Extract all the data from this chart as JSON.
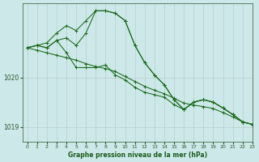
{
  "title": "Graphe pression niveau de la mer (hPa)",
  "background_color": "#cce8e8",
  "line_color": "#1a6b1a",
  "grid_color": "#aaaaaa",
  "xlim": [
    -0.5,
    23
  ],
  "ylim": [
    1018.7,
    1021.5
  ],
  "yticks": [
    1019,
    1020
  ],
  "xticks": [
    0,
    1,
    2,
    3,
    4,
    5,
    6,
    7,
    8,
    9,
    10,
    11,
    12,
    13,
    14,
    15,
    16,
    17,
    18,
    19,
    20,
    21,
    22,
    23
  ],
  "series": [
    [
      1020.6,
      1020.65,
      1020.7,
      1020.9,
      1021.05,
      1020.95,
      1021.15,
      1021.35,
      1021.35,
      1021.3,
      1021.15,
      1020.65,
      1020.3,
      1020.05,
      1019.85,
      1019.55,
      1019.35,
      1019.5,
      1019.55,
      1019.5,
      1019.38,
      1019.25,
      1019.1,
      1019.05
    ],
    [
      1020.6,
      1020.65,
      1020.6,
      1020.75,
      1020.8,
      1020.65,
      1020.9,
      1021.35,
      1021.35,
      1021.3,
      1021.15,
      1020.65,
      1020.3,
      1020.05,
      1019.85,
      1019.55,
      1019.35,
      1019.5,
      1019.55,
      1019.5,
      1019.38,
      1019.25,
      1019.1,
      1019.05
    ],
    [
      1020.6,
      1020.65,
      1020.6,
      1020.75,
      1020.5,
      1020.2,
      1020.2,
      1020.2,
      1020.25,
      1020.05,
      1019.95,
      1019.8,
      1019.7,
      1019.65,
      1019.6,
      1019.45,
      1019.35,
      1019.5,
      1019.55,
      1019.5,
      1019.38,
      1019.25,
      1019.1,
      1019.05
    ],
    [
      1020.6,
      1020.55,
      1020.5,
      1020.45,
      1020.4,
      1020.35,
      1020.28,
      1020.22,
      1020.18,
      1020.12,
      1020.02,
      1019.92,
      1019.82,
      1019.74,
      1019.67,
      1019.58,
      1019.48,
      1019.44,
      1019.41,
      1019.37,
      1019.29,
      1019.2,
      1019.1,
      1019.05
    ]
  ]
}
